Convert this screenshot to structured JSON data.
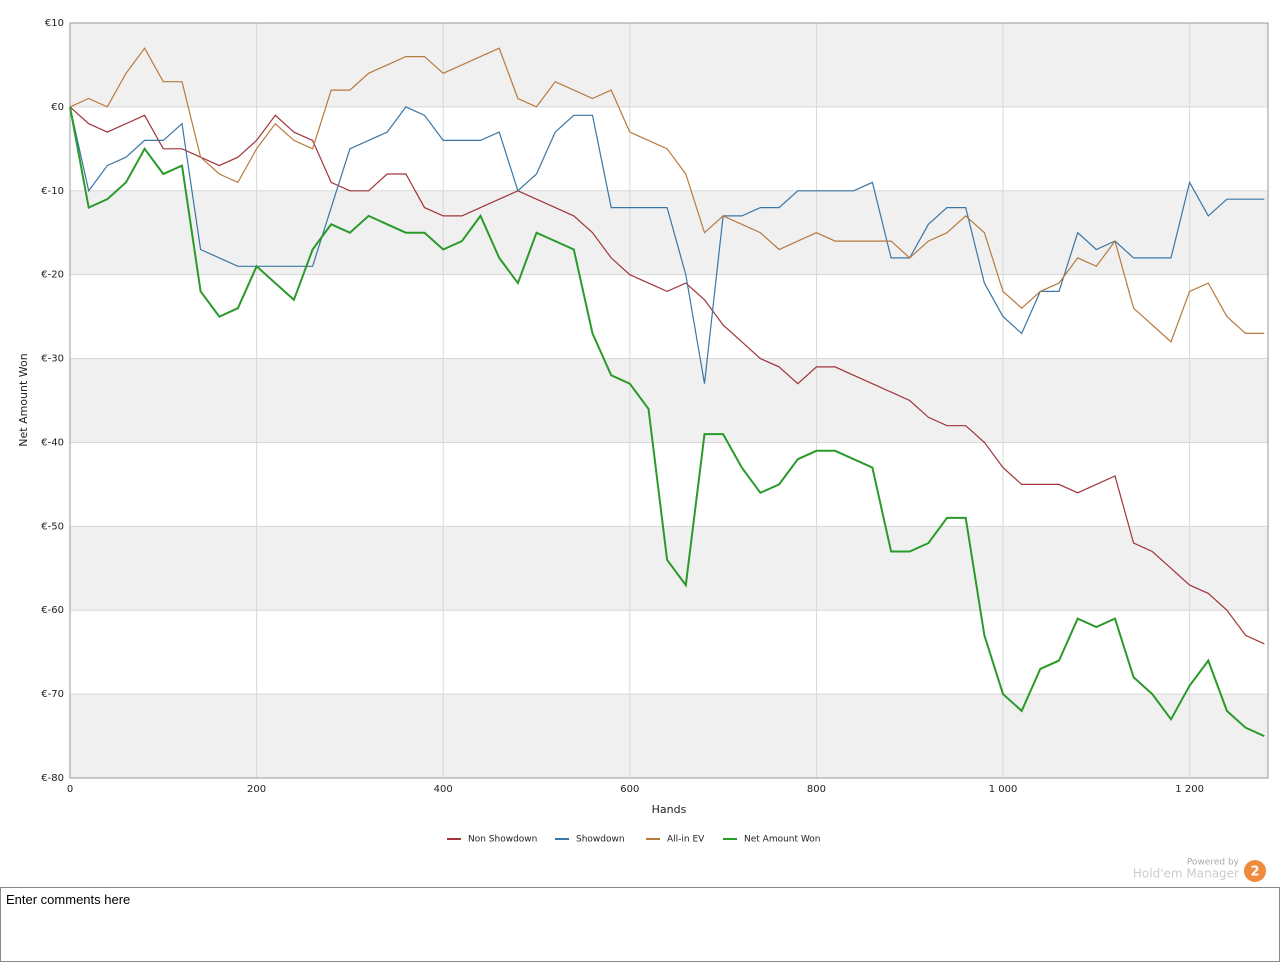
{
  "chart_data": {
    "type": "line",
    "y_label": "Net Amount Won",
    "x_label": "Hands",
    "x": [
      0,
      20,
      40,
      60,
      80,
      100,
      120,
      140,
      160,
      180,
      200,
      220,
      240,
      260,
      280,
      300,
      320,
      340,
      360,
      380,
      400,
      420,
      440,
      460,
      480,
      500,
      520,
      540,
      560,
      580,
      600,
      620,
      640,
      660,
      680,
      700,
      720,
      740,
      760,
      780,
      800,
      820,
      840,
      860,
      880,
      900,
      920,
      940,
      960,
      980,
      1000,
      1020,
      1040,
      1060,
      1080,
      1100,
      1120,
      1140,
      1160,
      1180,
      1200,
      1220,
      1240,
      1260,
      1280
    ],
    "series": [
      {
        "name": "Non Showdown",
        "color": "#a0343a",
        "values": [
          0,
          -2,
          -3,
          -2,
          -1,
          -5,
          -5,
          -6,
          -7,
          -6,
          -4,
          -1,
          -3,
          -4,
          -9,
          -10,
          -10,
          -8,
          -8,
          -12,
          -13,
          -13,
          -12,
          -11,
          -10,
          -11,
          -12,
          -13,
          -15,
          -18,
          -20,
          -21,
          -22,
          -21,
          -23,
          -26,
          -28,
          -30,
          -31,
          -33,
          -31,
          -31,
          -32,
          -33,
          -34,
          -35,
          -37,
          -38,
          -38,
          -40,
          -43,
          -45,
          -45,
          -45,
          -46,
          -45,
          -44,
          -52,
          -53,
          -55,
          -57,
          -58,
          -60,
          -63,
          -64
        ]
      },
      {
        "name": "Showdown",
        "color": "#3a76a5",
        "values": [
          0,
          -10,
          -7,
          -6,
          -4,
          -4,
          -2,
          -17,
          -18,
          -19,
          -19,
          -19,
          -19,
          -19,
          -12,
          -5,
          -4,
          -3,
          0,
          -1,
          -4,
          -4,
          -4,
          -3,
          -10,
          -8,
          -3,
          -1,
          -1,
          -12,
          -12,
          -12,
          -12,
          -20,
          -33,
          -13,
          -13,
          -12,
          -12,
          -10,
          -10,
          -10,
          -10,
          -9,
          -18,
          -18,
          -14,
          -12,
          -12,
          -21,
          -25,
          -27,
          -22,
          -22,
          -15,
          -17,
          -16,
          -18,
          -18,
          -18,
          -9,
          -13,
          -11,
          -11,
          -11
        ]
      },
      {
        "name": "All-in EV",
        "color": "#b8793e",
        "values": [
          0,
          1,
          0,
          4,
          7,
          3,
          3,
          -6,
          -8,
          -9,
          -5,
          -2,
          -4,
          -5,
          2,
          2,
          4,
          5,
          6,
          6,
          4,
          5,
          6,
          7,
          1,
          0,
          3,
          2,
          1,
          2,
          -3,
          -4,
          -5,
          -8,
          -15,
          -13,
          -14,
          -15,
          -17,
          -16,
          -15,
          -16,
          -16,
          -16,
          -16,
          -18,
          -16,
          -15,
          -13,
          -15,
          -22,
          -24,
          -22,
          -21,
          -18,
          -19,
          -16,
          -24,
          -26,
          -28,
          -22,
          -21,
          -25,
          -27,
          -27
        ]
      },
      {
        "name": "Net Amount Won",
        "color": "#2a9a2a",
        "values": [
          0,
          -12,
          -11,
          -9,
          -5,
          -8,
          -7,
          -22,
          -25,
          -24,
          -19,
          -21,
          -23,
          -17,
          -14,
          -15,
          -13,
          -14,
          -15,
          -15,
          -17,
          -16,
          -13,
          -18,
          -21,
          -15,
          -16,
          -17,
          -27,
          -32,
          -33,
          -36,
          -54,
          -57,
          -39,
          -39,
          -43,
          -46,
          -45,
          -42,
          -41,
          -41,
          -42,
          -43,
          -53,
          -53,
          -52,
          -49,
          -49,
          -63,
          -70,
          -72,
          -67,
          -66,
          -61,
          -62,
          -61,
          -68,
          -70,
          -73,
          -69,
          -66,
          -72,
          -74,
          -75
        ]
      }
    ],
    "xlim": [
      0,
      1284
    ],
    "xticks": [
      0,
      200,
      400,
      600,
      800,
      {
        "value": 1000,
        "label": "1 000"
      },
      {
        "value": 1200,
        "label": "1 200"
      }
    ],
    "ylim": [
      -80,
      10
    ],
    "yticks": [
      {
        "value": 10,
        "label": "€10"
      },
      {
        "value": 0,
        "label": "€0"
      },
      {
        "value": -10,
        "label": "€-10"
      },
      {
        "value": -20,
        "label": "€-20"
      },
      {
        "value": -30,
        "label": "€-30"
      },
      {
        "value": -40,
        "label": "€-40"
      },
      {
        "value": -50,
        "label": "€-50"
      },
      {
        "value": -60,
        "label": "€-60"
      },
      {
        "value": -70,
        "label": "€-70"
      },
      {
        "value": -80,
        "label": "€-80"
      }
    ],
    "grid": true,
    "legend": "bottom"
  },
  "branding": {
    "powered_by": "Powered by",
    "product": "Hold'em Manager",
    "badge": "2"
  },
  "comments": "Enter comments here"
}
